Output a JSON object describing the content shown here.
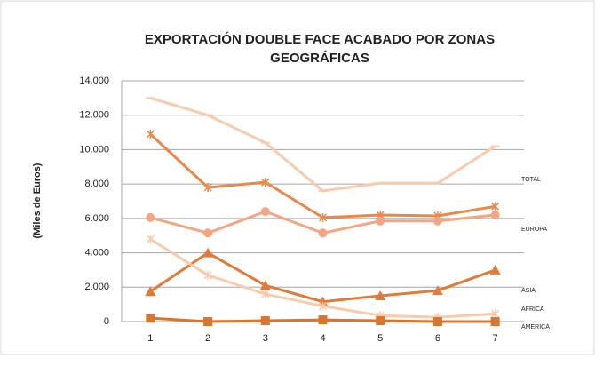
{
  "chart_data": {
    "type": "line",
    "title": [
      "EXPORTACIÓN DOUBLE FACE ACABADO POR ZONAS",
      "GEOGRÁFICAS"
    ],
    "ylabel": "(Miles de Euros)",
    "categories": [
      "1",
      "2",
      "3",
      "4",
      "5",
      "6",
      "7"
    ],
    "series": [
      {
        "color": "#f8cbad",
        "marker": "dash",
        "values": [
          13000,
          12000,
          10400,
          7600,
          8050,
          8050,
          10200
        ]
      },
      {
        "color": "#e8894a",
        "marker": "x",
        "values": [
          10900,
          7800,
          8100,
          6050,
          6200,
          6150,
          6700
        ]
      },
      {
        "color": "#f4a582",
        "marker": "circle",
        "values": [
          6050,
          5150,
          6400,
          5150,
          5850,
          5850,
          6200
        ]
      },
      {
        "color": "#e07b39",
        "marker": "triangle",
        "values": [
          1750,
          4000,
          2100,
          1150,
          1500,
          1800,
          3000
        ]
      },
      {
        "color": "#f8cbad",
        "marker": "x",
        "values": [
          4800,
          2700,
          1600,
          900,
          350,
          250,
          450
        ]
      },
      {
        "color": "#d9752f",
        "marker": "square",
        "values": [
          200,
          0,
          50,
          100,
          50,
          0,
          0
        ]
      }
    ],
    "annotations": [
      "TOTAL",
      "EUROPA",
      "ASIA",
      "AFRICA",
      "AMERICA"
    ],
    "ylim": [
      0,
      14000
    ],
    "yticks": [
      0,
      {
        "value": 2000,
        "label": "2.000"
      },
      {
        "value": 4000,
        "label": "4.000"
      },
      {
        "value": 6000,
        "label": "6.000"
      },
      {
        "value": 8000,
        "label": "8.000"
      },
      {
        "value": 10000,
        "label": "10.000"
      },
      {
        "value": 12000,
        "label": "12.000"
      },
      {
        "value": 14000,
        "label": "14.000"
      }
    ],
    "grid": true
  }
}
